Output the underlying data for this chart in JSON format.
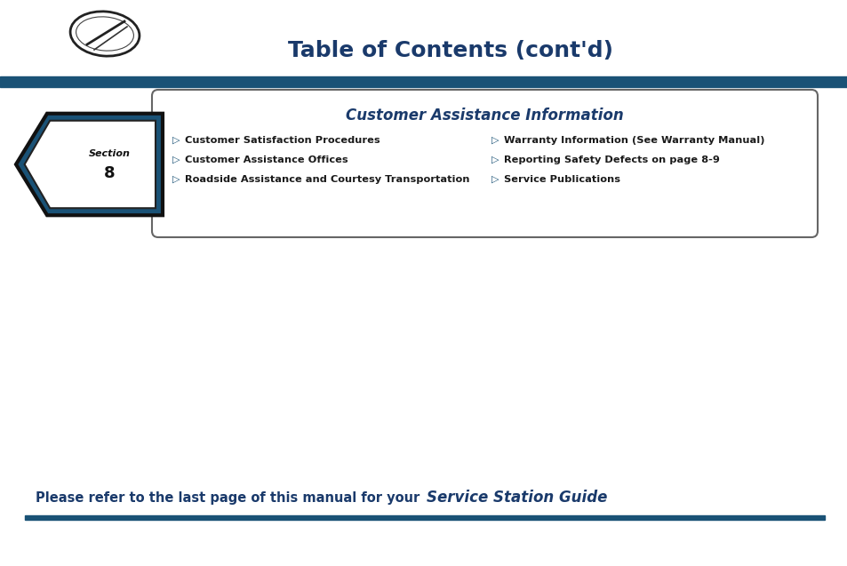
{
  "title": "Table of Contents (cont'd)",
  "title_color": "#1a3a6b",
  "title_fontsize": 18,
  "header_bar_color": "#1a5276",
  "section_title": "Customer Assistance Information",
  "section_title_color": "#1a3a6b",
  "section_number": "8",
  "left_items": [
    "Customer Satisfaction Procedures",
    "Customer Assistance Offices",
    "Roadside Assistance and Courtesy Transportation"
  ],
  "right_items": [
    "Warranty Information (See Warranty Manual)",
    "Reporting Safety Defects on page 8-9",
    "Service Publications"
  ],
  "item_color": "#1a1a1a",
  "bullet_color": "#1a5276",
  "footer_text_regular": "Please refer to the last page of this manual for your ",
  "footer_text_italic": "Service Station Guide",
  "footer_color": "#1a3a6b",
  "footer_bar_color": "#1a5276",
  "bg_color": "#ffffff",
  "box_color": "#ffffff",
  "box_border_color": "#666666",
  "arrow_fill": "#1a5276",
  "arrow_border": "#111111",
  "section_label_color": "#111111"
}
